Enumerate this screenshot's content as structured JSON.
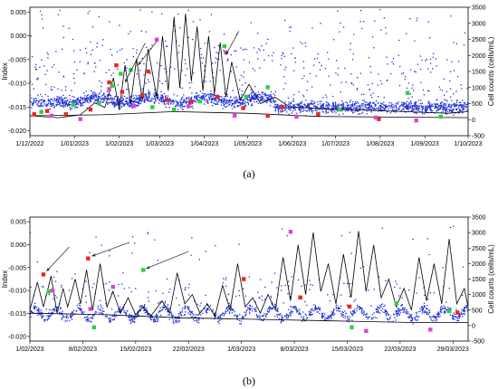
{
  "chart_data": [
    {
      "id": "a",
      "type": "scatter",
      "caption": "(a)",
      "ylabel": "Index",
      "y2label": "Cell counts (cells/mL)",
      "ylim": [
        -0.021,
        0.006
      ],
      "y2lim": [
        -500,
        3500
      ],
      "xlim_days": [
        0,
        304
      ],
      "x_ticks": [
        "1/12/2022",
        "1/01/2023",
        "1/02/2023",
        "1/03/2023",
        "1/04/2023",
        "1/05/2023",
        "1/06/2023",
        "1/07/2023",
        "1/08/2023",
        "1/09/2023",
        "1/10/2023"
      ],
      "x_tick_days": [
        0,
        31,
        62,
        90,
        121,
        151,
        182,
        212,
        243,
        274,
        304
      ],
      "y_ticks": [
        0.005,
        0.0,
        -0.005,
        -0.01,
        -0.015,
        -0.02
      ],
      "y_tick_labels": [
        "0.005",
        "0.000",
        "-0.005",
        "-0.010",
        "-0.015",
        "-0.020"
      ],
      "y2_ticks": [
        3500,
        3000,
        2500,
        2000,
        1500,
        1000,
        500,
        0,
        -500
      ],
      "y2_tick_labels": [
        "3500",
        "3000",
        "2500",
        "2000",
        "1500",
        "1000",
        "500",
        "0",
        "-500"
      ],
      "series": [
        {
          "kind": "scatter",
          "role": "index",
          "color": "#1f2fd6"
        },
        {
          "kind": "line",
          "role": "cell-counts",
          "color": "#000000",
          "points": [
            [
              0,
              120
            ],
            [
              20,
              60
            ],
            [
              35,
              150
            ],
            [
              45,
              520
            ],
            [
              52,
              380
            ],
            [
              58,
              1300
            ],
            [
              62,
              300
            ],
            [
              66,
              1700
            ],
            [
              70,
              500
            ],
            [
              74,
              1900
            ],
            [
              78,
              600
            ],
            [
              82,
              2200
            ],
            [
              88,
              700
            ],
            [
              92,
              2600
            ],
            [
              96,
              900
            ],
            [
              100,
              3200
            ],
            [
              104,
              1000
            ],
            [
              108,
              3300
            ],
            [
              112,
              1200
            ],
            [
              116,
              2900
            ],
            [
              120,
              900
            ],
            [
              124,
              2600
            ],
            [
              128,
              800
            ],
            [
              132,
              2400
            ],
            [
              136,
              700
            ],
            [
              140,
              1800
            ],
            [
              146,
              600
            ],
            [
              152,
              1100
            ],
            [
              160,
              500
            ],
            [
              170,
              700
            ],
            [
              180,
              400
            ],
            [
              200,
              350
            ],
            [
              230,
              300
            ],
            [
              260,
              250
            ],
            [
              290,
              200
            ],
            [
              304,
              250
            ]
          ]
        },
        {
          "kind": "line",
          "role": "baseline",
          "color": "#000000",
          "points": [
            [
              0,
              120
            ],
            [
              50,
              150
            ],
            [
              100,
              250
            ],
            [
              150,
              200
            ],
            [
              200,
              100
            ],
            [
              250,
              80
            ],
            [
              304,
              60
            ]
          ]
        }
      ],
      "markers": [
        {
          "color": "#e8261a",
          "points": [
            [
              3,
              -0.0165
            ],
            [
              12,
              -0.0158
            ],
            [
              25,
              -0.0165
            ],
            [
              42,
              -0.0155
            ],
            [
              55,
              -0.0098
            ],
            [
              60,
              -0.0062
            ],
            [
              64,
              -0.0118
            ],
            [
              78,
              -0.0125
            ],
            [
              82,
              -0.0075
            ],
            [
              95,
              -0.0135
            ],
            [
              112,
              -0.0138
            ],
            [
              130,
              -0.0128
            ],
            [
              148,
              -0.0152
            ],
            [
              165,
              -0.0168
            ],
            [
              175,
              -0.015
            ],
            [
              200,
              -0.0165
            ],
            [
              242,
              -0.0175
            ]
          ]
        },
        {
          "color": "#2ad13a",
          "points": [
            [
              8,
              -0.016
            ],
            [
              30,
              -0.0145
            ],
            [
              48,
              -0.0142
            ],
            [
              57,
              -0.0105
            ],
            [
              63,
              -0.008
            ],
            [
              70,
              -0.0072
            ],
            [
              85,
              -0.015
            ],
            [
              100,
              -0.0155
            ],
            [
              118,
              -0.0138
            ],
            [
              135,
              -0.0022
            ],
            [
              150,
              -0.0128
            ],
            [
              165,
              -0.0108
            ],
            [
              215,
              -0.0155
            ],
            [
              262,
              -0.012
            ],
            [
              285,
              -0.017
            ]
          ]
        },
        {
          "color": "#e040d8",
          "points": [
            [
              15,
              -0.0168
            ],
            [
              35,
              -0.0175
            ],
            [
              55,
              -0.0112
            ],
            [
              72,
              -0.0148
            ],
            [
              88,
              -0.0008
            ],
            [
              110,
              -0.0148
            ],
            [
              136,
              -0.0035
            ],
            [
              142,
              -0.0168
            ],
            [
              185,
              -0.017
            ],
            [
              240,
              -0.0172
            ],
            [
              268,
              -0.0178
            ]
          ]
        }
      ],
      "arrows": [
        {
          "from": [
            80,
            -0.0015
          ],
          "to": [
            66,
            -0.0098
          ]
        },
        {
          "from": [
            88,
            -0.0012
          ],
          "to": [
            75,
            -0.0062
          ]
        },
        {
          "from": [
            145,
            0.001
          ],
          "to": [
            136,
            -0.004
          ]
        }
      ]
    },
    {
      "id": "b",
      "type": "scatter",
      "caption": "(b)",
      "ylabel": "Index",
      "y2label": "Cell counts (cells/mL)",
      "ylim": [
        -0.021,
        0.006
      ],
      "y2lim": [
        -500,
        3500
      ],
      "xlim_days": [
        0,
        58
      ],
      "x_ticks": [
        "1/02/2023",
        "8/02/2023",
        "15/02/2023",
        "22/02/2023",
        "1/03/2023",
        "8/03/2023",
        "15/03/2023",
        "22/03/2023",
        "29/03/2023"
      ],
      "x_tick_days": [
        0,
        7,
        14,
        21,
        28,
        35,
        42,
        49,
        56
      ],
      "y_ticks": [
        0.005,
        0.0,
        -0.005,
        -0.01,
        -0.015,
        -0.02
      ],
      "y_tick_labels": [
        "0.005",
        "0.000",
        "-0.005",
        "-0.010",
        "-0.015",
        "-0.020"
      ],
      "y2_ticks": [
        3500,
        3000,
        2500,
        2000,
        1500,
        1000,
        500,
        0,
        -500
      ],
      "y2_tick_labels": [
        "3500",
        "3000",
        "2500",
        "2000",
        "1500",
        "1000",
        "500",
        "0",
        "-500"
      ],
      "series": [
        {
          "kind": "scatter",
          "role": "index",
          "color": "#1f2fd6"
        },
        {
          "kind": "line",
          "role": "cell-counts",
          "color": "#000000",
          "points": [
            [
              0,
              500
            ],
            [
              1,
              1400
            ],
            [
              1.8,
              600
            ],
            [
              2.8,
              1600
            ],
            [
              3.6,
              400
            ],
            [
              4.4,
              1200
            ],
            [
              5,
              600
            ],
            [
              6,
              1500
            ],
            [
              6.7,
              700
            ],
            [
              7.5,
              1800
            ],
            [
              8.3,
              500
            ],
            [
              9.3,
              2000
            ],
            [
              10.2,
              600
            ],
            [
              11,
              1100
            ],
            [
              12,
              400
            ],
            [
              13,
              900
            ],
            [
              14,
              350
            ],
            [
              15,
              600
            ],
            [
              16,
              300
            ],
            [
              17.5,
              800
            ],
            [
              18.5,
              400
            ],
            [
              19.5,
              1700
            ],
            [
              20.5,
              700
            ],
            [
              21.5,
              1000
            ],
            [
              22.5,
              400
            ],
            [
              23.5,
              700
            ],
            [
              24.5,
              300
            ],
            [
              25.5,
              1300
            ],
            [
              26.5,
              500
            ],
            [
              27.5,
              2000
            ],
            [
              28.5,
              600
            ],
            [
              29.5,
              900
            ],
            [
              30.5,
              400
            ],
            [
              31.5,
              1000
            ],
            [
              32.5,
              500
            ],
            [
              33.5,
              2200
            ],
            [
              34.5,
              800
            ],
            [
              35.5,
              2600
            ],
            [
              36.5,
              1000
            ],
            [
              37.5,
              3000
            ],
            [
              38.5,
              1100
            ],
            [
              39.5,
              2000
            ],
            [
              40.5,
              700
            ],
            [
              41.5,
              2300
            ],
            [
              42.5,
              900
            ],
            [
              43.5,
              3050
            ],
            [
              44.5,
              1100
            ],
            [
              45.5,
              2600
            ],
            [
              46.5,
              900
            ],
            [
              47.5,
              1500
            ],
            [
              48.5,
              600
            ],
            [
              49.5,
              1200
            ],
            [
              50.5,
              500
            ],
            [
              51.5,
              2200
            ],
            [
              52.5,
              800
            ],
            [
              53.5,
              2000
            ],
            [
              54.5,
              700
            ],
            [
              55.5,
              2800
            ],
            [
              56.5,
              700
            ],
            [
              57.5,
              1200
            ],
            [
              58,
              600
            ]
          ]
        },
        {
          "kind": "line",
          "role": "baseline",
          "color": "#000000",
          "points": [
            [
              0,
              400
            ],
            [
              10,
              350
            ],
            [
              20,
              250
            ],
            [
              30,
              200
            ],
            [
              40,
              150
            ],
            [
              50,
              100
            ],
            [
              58,
              100
            ]
          ]
        }
      ],
      "markers": [
        {
          "color": "#e8261a",
          "points": [
            [
              1.8,
              -0.0065
            ],
            [
              7.7,
              -0.003
            ],
            [
              28.3,
              -0.0075
            ],
            [
              35.8,
              -0.0115
            ],
            [
              42.3,
              -0.0135
            ],
            [
              56.6,
              -0.0148
            ]
          ]
        },
        {
          "color": "#2ad13a",
          "points": [
            [
              2.5,
              -0.0102
            ],
            [
              8.5,
              -0.018
            ],
            [
              15,
              -0.0055
            ],
            [
              42.6,
              -0.018
            ],
            [
              48.5,
              -0.0128
            ],
            [
              55.5,
              -0.0145
            ]
          ]
        },
        {
          "color": "#e040d8",
          "points": [
            [
              3,
              -0.01
            ],
            [
              8,
              -0.014
            ],
            [
              11,
              -0.0092
            ],
            [
              34.5,
              0.0028
            ],
            [
              44.5,
              -0.0188
            ],
            [
              53,
              -0.0185
            ]
          ]
        }
      ],
      "arrows": [
        {
          "from": [
            5.2,
            -0.0005
          ],
          "to": [
            2.2,
            -0.0058
          ]
        },
        {
          "from": [
            13.2,
            0.0005
          ],
          "to": [
            8.2,
            -0.0025
          ]
        },
        {
          "from": [
            21,
            -0.0015
          ],
          "to": [
            15.4,
            -0.0052
          ]
        }
      ]
    }
  ]
}
